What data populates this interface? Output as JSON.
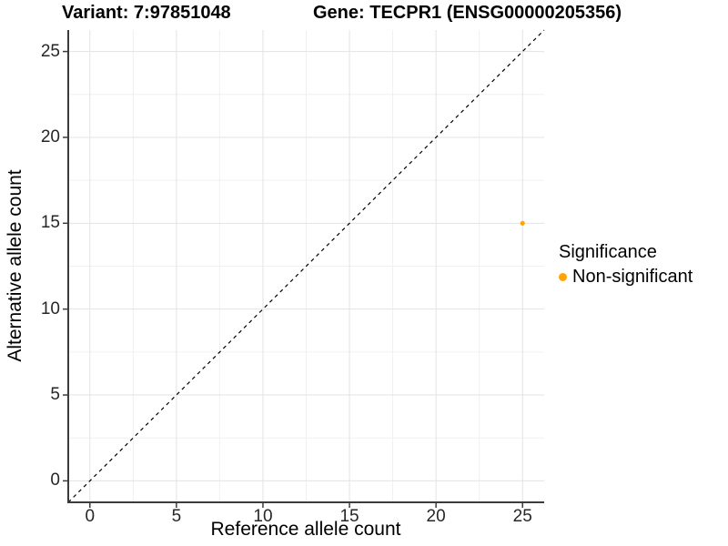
{
  "title": {
    "variant": "Variant: 7:97851048",
    "gene": "Gene: TECPR1 (ENSG00000205356)"
  },
  "chart_data": {
    "type": "scatter",
    "xlabel": "Reference allele count",
    "ylabel": "Alternative allele count",
    "xlim": [
      -1.25,
      26.25
    ],
    "ylim": [
      -1.25,
      26.25
    ],
    "x_ticks": [
      0,
      5,
      10,
      15,
      20,
      25
    ],
    "y_ticks": [
      0,
      5,
      10,
      15,
      20,
      25
    ],
    "x_minor_ticks": [
      2.5,
      7.5,
      12.5,
      17.5,
      22.5
    ],
    "y_minor_ticks": [
      2.5,
      7.5,
      12.5,
      17.5,
      22.5
    ],
    "grid": true,
    "identity_line": {
      "slope": 1,
      "intercept": 0,
      "style": "dashed",
      "color": "#000000"
    },
    "series": [
      {
        "name": "Non-significant",
        "color": "#FFA500",
        "points": [
          {
            "x": 25,
            "y": 15
          }
        ]
      }
    ],
    "legend": {
      "title": "Significance",
      "position": "right",
      "items": [
        {
          "label": "Non-significant",
          "color": "#FFA500"
        }
      ]
    }
  },
  "colors": {
    "point_orange": "#FFA500",
    "axis_line": "#3c3c3c",
    "grid_major": "#e3e3e3",
    "grid_minor": "#f0f0f0",
    "background": "#ffffff"
  }
}
